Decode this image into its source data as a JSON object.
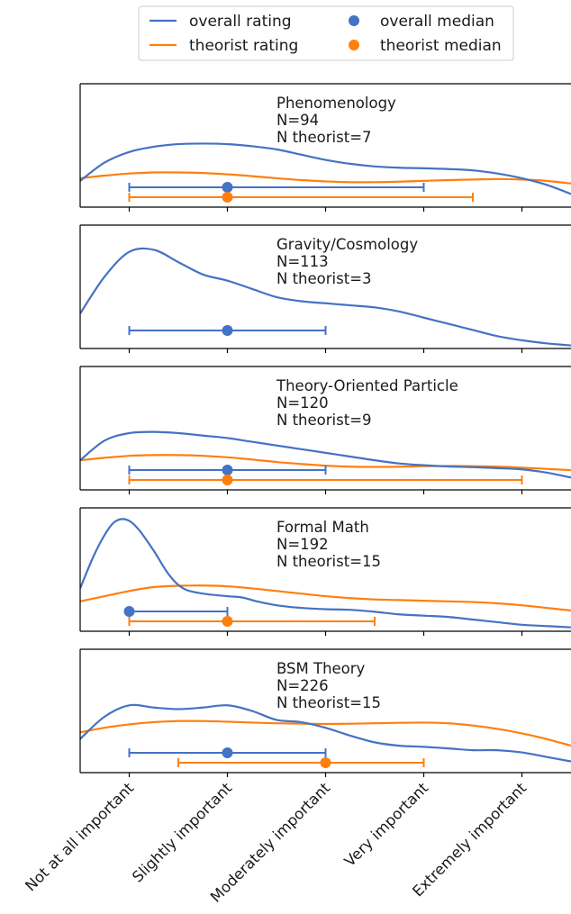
{
  "legend": {
    "placement": "top-center",
    "entries": [
      {
        "label": "overall rating",
        "kind": "line",
        "color": "#4472c4"
      },
      {
        "label": "overall median",
        "kind": "marker",
        "color": "#4472c4"
      },
      {
        "label": "theorist rating",
        "kind": "line",
        "color": "#ff7f0e"
      },
      {
        "label": "theorist median",
        "kind": "marker",
        "color": "#ff7f0e"
      }
    ]
  },
  "colors": {
    "overall": "#4472c4",
    "theorist": "#ff7f0e"
  },
  "x_tick_labels": [
    "Not at all important",
    "Slightly important",
    "Moderately important",
    "Very important",
    "Extremely important"
  ],
  "chart_data": [
    {
      "type": "area",
      "title": "Phenomenology",
      "annotation": [
        "Phenomenology",
        "N=94",
        "N theorist=7"
      ],
      "xlim": [
        0.5,
        5.5
      ],
      "ylim": [
        0,
        0.47
      ],
      "overall_density": {
        "x": [
          0.5,
          0.75,
          1,
          1.25,
          1.5,
          1.75,
          2,
          2.25,
          2.5,
          2.75,
          3,
          3.25,
          3.5,
          3.75,
          4,
          4.25,
          4.5,
          4.75,
          5,
          5.25,
          5.5
        ],
        "y": [
          0.1,
          0.17,
          0.21,
          0.23,
          0.24,
          0.242,
          0.24,
          0.232,
          0.22,
          0.2,
          0.18,
          0.165,
          0.155,
          0.15,
          0.148,
          0.145,
          0.14,
          0.128,
          0.11,
          0.085,
          0.05
        ]
      },
      "theorist_density": {
        "x": [
          0.5,
          0.75,
          1,
          1.25,
          1.5,
          1.75,
          2,
          2.25,
          2.5,
          2.75,
          3,
          3.25,
          3.5,
          3.75,
          4,
          4.25,
          4.5,
          4.75,
          5,
          5.25,
          5.5
        ],
        "y": [
          0.11,
          0.12,
          0.128,
          0.132,
          0.132,
          0.13,
          0.125,
          0.118,
          0.11,
          0.103,
          0.098,
          0.095,
          0.095,
          0.097,
          0.1,
          0.103,
          0.105,
          0.107,
          0.105,
          0.1,
          0.09
        ]
      },
      "overall_median": 2,
      "overall_range": [
        1,
        4
      ],
      "theorist_median": 2,
      "theorist_range": [
        1,
        4.5
      ]
    },
    {
      "type": "area",
      "title": "Gravity/Cosmology",
      "annotation": [
        "Gravity/Cosmology",
        "N=113",
        "N theorist=3"
      ],
      "xlim": [
        0.5,
        5.5
      ],
      "ylim": [
        0,
        0.6
      ],
      "overall_density": {
        "x": [
          0.5,
          0.75,
          1,
          1.25,
          1.5,
          1.75,
          2,
          2.25,
          2.5,
          2.75,
          3,
          3.25,
          3.5,
          3.75,
          4,
          4.25,
          4.5,
          4.75,
          5,
          5.25,
          5.5
        ],
        "y": [
          0.17,
          0.35,
          0.47,
          0.48,
          0.42,
          0.36,
          0.33,
          0.29,
          0.25,
          0.23,
          0.22,
          0.21,
          0.2,
          0.18,
          0.15,
          0.12,
          0.09,
          0.06,
          0.04,
          0.025,
          0.015
        ]
      },
      "overall_median": 2,
      "overall_range": [
        1,
        3
      ]
    },
    {
      "type": "area",
      "title": "Theory-Oriented Particle",
      "annotation": [
        "Theory-Oriented Particle",
        "N=120",
        "N theorist=9"
      ],
      "xlim": [
        0.5,
        5.5
      ],
      "ylim": [
        0,
        0.5
      ],
      "overall_density": {
        "x": [
          0.5,
          0.75,
          1,
          1.25,
          1.5,
          1.75,
          2,
          2.25,
          2.5,
          2.75,
          3,
          3.25,
          3.5,
          3.75,
          4,
          4.25,
          4.5,
          4.75,
          5,
          5.25,
          5.5
        ],
        "y": [
          0.12,
          0.2,
          0.23,
          0.235,
          0.23,
          0.22,
          0.21,
          0.195,
          0.18,
          0.165,
          0.15,
          0.135,
          0.12,
          0.107,
          0.1,
          0.095,
          0.092,
          0.088,
          0.083,
          0.07,
          0.05
        ]
      },
      "theorist_density": {
        "x": [
          0.5,
          0.75,
          1,
          1.25,
          1.5,
          1.75,
          2,
          2.25,
          2.5,
          2.75,
          3,
          3.25,
          3.5,
          3.75,
          4,
          4.25,
          4.5,
          4.75,
          5,
          5.25,
          5.5
        ],
        "y": [
          0.12,
          0.13,
          0.138,
          0.141,
          0.141,
          0.138,
          0.132,
          0.123,
          0.113,
          0.105,
          0.098,
          0.094,
          0.093,
          0.094,
          0.096,
          0.097,
          0.096,
          0.094,
          0.09,
          0.085,
          0.08
        ]
      },
      "overall_median": 2,
      "overall_range": [
        1,
        3
      ],
      "theorist_median": 2,
      "theorist_range": [
        1,
        5
      ]
    },
    {
      "type": "area",
      "title": "Formal Math",
      "annotation": [
        "Formal Math",
        "N=192",
        "N theorist=15"
      ],
      "xlim": [
        0.5,
        5.5
      ],
      "ylim": [
        0,
        0.95
      ],
      "overall_density": {
        "x": [
          0.5,
          0.65,
          0.8,
          0.9,
          1,
          1.1,
          1.25,
          1.4,
          1.55,
          1.75,
          2,
          2.15,
          2.3,
          2.5,
          2.75,
          3,
          3.25,
          3.5,
          3.75,
          4,
          4.25,
          4.5,
          4.75,
          5,
          5.25,
          5.5
        ],
        "y": [
          0.33,
          0.6,
          0.8,
          0.86,
          0.85,
          0.78,
          0.62,
          0.44,
          0.33,
          0.29,
          0.27,
          0.26,
          0.23,
          0.2,
          0.18,
          0.17,
          0.165,
          0.15,
          0.13,
          0.12,
          0.11,
          0.09,
          0.07,
          0.05,
          0.04,
          0.03
        ]
      },
      "theorist_density": {
        "x": [
          0.5,
          0.75,
          1,
          1.25,
          1.5,
          1.75,
          2,
          2.25,
          2.5,
          2.75,
          3,
          3.25,
          3.5,
          3.75,
          4,
          4.25,
          4.5,
          4.75,
          5,
          5.25,
          5.5
        ],
        "y": [
          0.23,
          0.27,
          0.31,
          0.34,
          0.35,
          0.352,
          0.346,
          0.33,
          0.31,
          0.29,
          0.27,
          0.255,
          0.245,
          0.24,
          0.235,
          0.23,
          0.225,
          0.215,
          0.2,
          0.18,
          0.16
        ]
      },
      "overall_median": 1,
      "overall_range": [
        1,
        2
      ],
      "theorist_median": 2,
      "theorist_range": [
        1,
        3.5
      ]
    },
    {
      "type": "area",
      "title": "BSM Theory",
      "annotation": [
        "BSM Theory",
        "N=226",
        "N theorist=15"
      ],
      "xlim": [
        0.5,
        5.5
      ],
      "ylim": [
        0,
        0.55
      ],
      "overall_density": {
        "x": [
          0.5,
          0.75,
          1,
          1.25,
          1.5,
          1.75,
          2,
          2.25,
          2.5,
          2.75,
          3,
          3.25,
          3.5,
          3.75,
          4,
          4.25,
          4.5,
          4.75,
          5,
          5.25,
          5.5
        ],
        "y": [
          0.15,
          0.25,
          0.3,
          0.29,
          0.283,
          0.29,
          0.3,
          0.275,
          0.235,
          0.225,
          0.2,
          0.165,
          0.135,
          0.12,
          0.115,
          0.108,
          0.1,
          0.1,
          0.09,
          0.07,
          0.05
        ]
      },
      "theorist_density": {
        "x": [
          0.5,
          0.75,
          1,
          1.25,
          1.5,
          1.75,
          2,
          2.25,
          2.5,
          2.75,
          3,
          3.25,
          3.5,
          3.75,
          4,
          4.25,
          4.5,
          4.75,
          5,
          5.25,
          5.5
        ],
        "y": [
          0.18,
          0.2,
          0.215,
          0.225,
          0.23,
          0.23,
          0.227,
          0.223,
          0.22,
          0.218,
          0.217,
          0.218,
          0.22,
          0.222,
          0.223,
          0.22,
          0.21,
          0.195,
          0.175,
          0.15,
          0.12
        ]
      },
      "overall_median": 2,
      "overall_range": [
        1,
        3
      ],
      "theorist_median": 3,
      "theorist_range": [
        1.5,
        4
      ]
    }
  ]
}
